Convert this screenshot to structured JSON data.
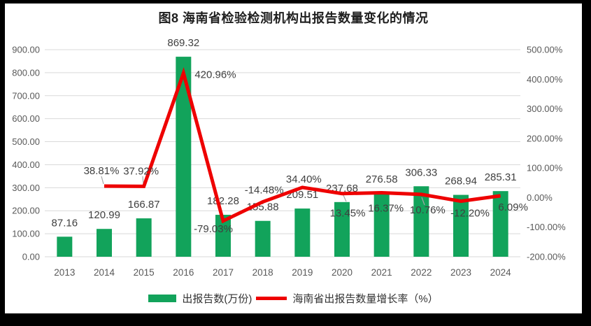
{
  "chart_data": {
    "type": "bar+line combo",
    "title": "图8 海南省检验检测机构出报告数量变化的情况",
    "categories": [
      "2013",
      "2014",
      "2015",
      "2016",
      "2017",
      "2018",
      "2019",
      "2020",
      "2021",
      "2022",
      "2023",
      "2024"
    ],
    "series": [
      {
        "name": "出报告数(万份)",
        "type": "bar",
        "axis": "left",
        "color": "#12A35B",
        "values": [
          87.16,
          120.99,
          166.87,
          869.32,
          182.28,
          155.88,
          209.51,
          237.68,
          276.58,
          306.33,
          268.94,
          285.31
        ],
        "labels": [
          "87.16",
          "120.99",
          "166.87",
          "869.32",
          "182.28",
          "155.88",
          "209.51",
          "237.68",
          "276.58",
          "306.33",
          "268.94",
          "285.31"
        ]
      },
      {
        "name": "海南省出报告数量增长率（%）",
        "type": "line",
        "axis": "right",
        "color": "#EE0000",
        "values": [
          null,
          38.81,
          37.92,
          420.96,
          -79.03,
          -14.48,
          34.4,
          13.45,
          16.37,
          10.76,
          -12.2,
          6.09
        ],
        "labels": [
          null,
          "38.81%",
          "37.92%",
          "420.96%",
          "-79.03%",
          "-14.48%",
          "34.40%",
          "13.45%",
          "16.37%",
          "10.76%",
          "-12.20%",
          "6.09%"
        ]
      }
    ],
    "left_axis": {
      "min": 0,
      "max": 900,
      "step": 100,
      "tick_labels": [
        "0.00",
        "100.00",
        "200.00",
        "300.00",
        "400.00",
        "500.00",
        "600.00",
        "700.00",
        "800.00",
        "900.00"
      ]
    },
    "right_axis": {
      "min": -200,
      "max": 500,
      "step": 100,
      "tick_labels": [
        "-200.00%",
        "-100.00%",
        "0.00%",
        "100.00%",
        "200.00%",
        "300.00%",
        "400.00%",
        "500.00%"
      ]
    },
    "grid": true,
    "legend_position": "bottom",
    "colors": {
      "grid": "#D9D9D9",
      "axis_text": "#595959",
      "label_text": "#404040",
      "leader_line": "#A6A6A6",
      "title_text": "#1F1F1F",
      "frame": "#000000",
      "background": "#FFFFFF"
    }
  }
}
